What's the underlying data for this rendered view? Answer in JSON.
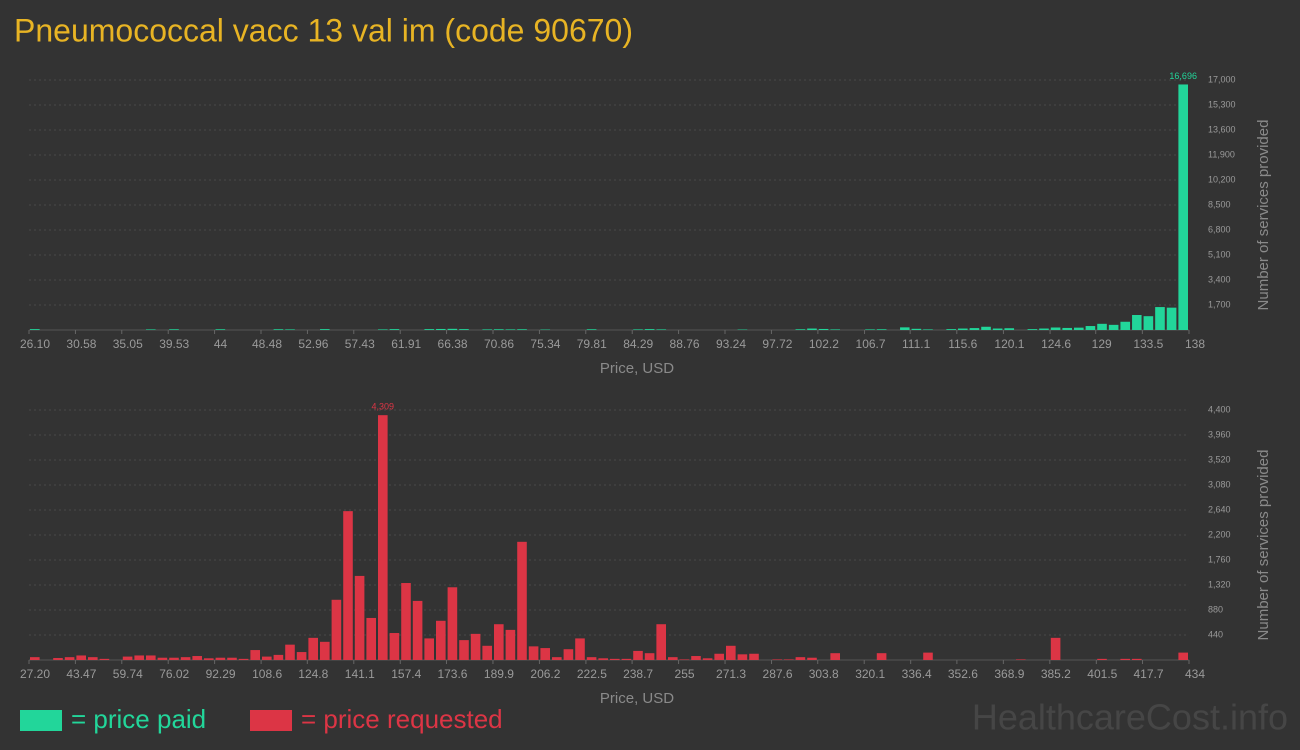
{
  "title": "Pneumococcal vacc 13 val im (code 90670)",
  "watermark": "HealthcareCost.info",
  "chart_data": [
    {
      "type": "histogram",
      "xlabel": "Price, USD",
      "ylabel": "Number of services provided",
      "grid": true,
      "xlim": [
        26.1,
        138
      ],
      "ylim": [
        0,
        17000
      ],
      "bins": [
        26.1,
        27.22,
        28.34,
        29.46,
        30.58,
        31.7,
        32.81,
        33.93,
        35.05,
        36.17,
        37.29,
        38.41,
        39.53,
        40.65,
        41.77,
        42.89,
        44.0,
        45.12,
        46.24,
        47.36,
        48.48,
        49.6,
        50.72,
        51.84,
        52.96,
        54.08,
        55.19,
        56.31,
        57.43,
        58.55,
        59.67,
        60.79,
        61.91,
        63.03,
        64.15,
        65.27,
        66.38,
        67.5,
        68.62,
        69.74,
        70.86,
        71.98,
        73.1,
        74.22,
        75.34,
        76.46,
        77.57,
        78.69,
        79.81,
        80.93,
        82.05,
        83.17,
        84.29,
        85.41,
        86.53,
        87.65,
        88.76,
        89.88,
        91.0,
        92.12,
        93.24,
        94.36,
        95.48,
        96.6,
        97.72,
        98.84,
        99.95,
        101.07,
        102.19,
        103.31,
        104.43,
        105.55,
        106.67,
        107.79,
        108.91,
        110.03,
        111.14,
        112.26,
        113.38,
        114.5,
        115.62,
        116.74,
        117.86,
        118.98,
        120.1,
        121.22,
        122.33,
        123.45,
        124.57,
        125.69,
        126.81,
        127.93,
        129.05,
        130.17,
        131.29,
        132.41,
        133.52,
        134.64,
        135.76,
        136.88,
        138.0
      ],
      "xticks": [
        {
          "value": 26.1,
          "label": "26.10"
        },
        30.58,
        35.05,
        39.53,
        44,
        48.48,
        52.96,
        57.43,
        61.91,
        66.38,
        70.86,
        75.34,
        79.81,
        84.29,
        88.76,
        93.24,
        97.72,
        102.2,
        106.7,
        111.1,
        115.6,
        120.1,
        124.6,
        129,
        133.5,
        138
      ],
      "yticks": [
        {
          "value": 1700,
          "label": "1,700"
        },
        {
          "value": 3400,
          "label": "3,400"
        },
        {
          "value": 5100,
          "label": "5,100"
        },
        {
          "value": 6800,
          "label": "6,800"
        },
        {
          "value": 8500,
          "label": "8,500"
        },
        {
          "value": 10200,
          "label": "10,200"
        },
        {
          "value": 11900,
          "label": "11,900"
        },
        {
          "value": 13600,
          "label": "13,600"
        },
        {
          "value": 15300,
          "label": "15,300"
        },
        {
          "value": 17000,
          "label": "17,000"
        }
      ],
      "series": [
        {
          "name": "= price paid",
          "color": "#22d69a",
          "values": [
            60,
            0,
            0,
            0,
            0,
            0,
            0,
            0,
            0,
            0,
            40,
            0,
            50,
            0,
            0,
            0,
            50,
            0,
            0,
            0,
            0,
            50,
            40,
            0,
            0,
            60,
            0,
            0,
            0,
            0,
            40,
            60,
            0,
            0,
            60,
            70,
            80,
            60,
            0,
            40,
            50,
            40,
            50,
            0,
            30,
            0,
            0,
            0,
            50,
            0,
            0,
            0,
            40,
            60,
            40,
            0,
            0,
            0,
            0,
            0,
            0,
            30,
            0,
            0,
            0,
            0,
            50,
            100,
            70,
            40,
            0,
            0,
            40,
            50,
            0,
            180,
            80,
            40,
            0,
            60,
            100,
            130,
            220,
            100,
            120,
            0,
            60,
            100,
            170,
            140,
            160,
            270,
            420,
            350,
            560,
            1020,
            940,
            1560,
            1520,
            16696
          ],
          "value_labels": [
            null,
            null,
            null,
            null,
            null,
            null,
            null,
            null,
            null,
            null,
            null,
            null,
            null,
            null,
            null,
            null,
            null,
            null,
            null,
            null,
            null,
            null,
            null,
            null,
            null,
            null,
            null,
            null,
            null,
            null,
            null,
            null,
            null,
            null,
            null,
            null,
            null,
            null,
            null,
            null,
            null,
            null,
            null,
            null,
            null,
            null,
            null,
            null,
            null,
            null,
            null,
            null,
            null,
            null,
            null,
            null,
            null,
            null,
            null,
            null,
            null,
            null,
            null,
            null,
            null,
            null,
            null,
            null,
            null,
            null,
            null,
            null,
            null,
            null,
            null,
            null,
            null,
            null,
            null,
            null,
            null,
            null,
            null,
            null,
            null,
            null,
            null,
            null,
            null,
            null,
            null,
            null,
            null,
            null,
            null,
            null,
            null,
            null,
            null,
            "16,696"
          ]
        }
      ]
    },
    {
      "type": "histogram",
      "xlabel": "Price, USD",
      "ylabel": "Number of services provided",
      "grid": true,
      "xlim": [
        27.2,
        434
      ],
      "ylim": [
        0,
        4400
      ],
      "bins": [
        27.2,
        31.27,
        35.34,
        39.4,
        43.47,
        47.54,
        51.61,
        55.68,
        59.74,
        63.81,
        67.88,
        71.95,
        76.02,
        80.08,
        84.15,
        88.22,
        92.29,
        96.36,
        100.42,
        104.49,
        108.56,
        112.63,
        116.7,
        120.76,
        124.83,
        128.9,
        132.97,
        137.04,
        141.1,
        145.17,
        149.24,
        153.31,
        157.38,
        161.44,
        165.51,
        169.58,
        173.65,
        177.72,
        181.78,
        185.85,
        189.92,
        193.99,
        198.06,
        202.12,
        206.19,
        210.26,
        214.33,
        218.4,
        222.46,
        226.53,
        230.6,
        234.67,
        238.74,
        242.8,
        246.87,
        250.94,
        255.01,
        259.08,
        263.14,
        267.21,
        271.28,
        275.35,
        279.42,
        283.48,
        287.55,
        291.62,
        295.69,
        299.76,
        303.82,
        307.89,
        311.96,
        316.03,
        320.1,
        324.16,
        328.23,
        332.3,
        336.37,
        340.44,
        344.5,
        348.57,
        352.64,
        356.71,
        360.78,
        364.84,
        368.91,
        372.98,
        377.05,
        381.12,
        385.18,
        389.25,
        393.32,
        397.39,
        401.46,
        405.52,
        409.59,
        413.66,
        417.73,
        421.8,
        425.86,
        429.93,
        434.0
      ],
      "xticks": [
        {
          "value": 27.2,
          "label": "27.20"
        },
        43.47,
        59.74,
        76.02,
        92.29,
        108.6,
        124.8,
        141.1,
        157.4,
        173.6,
        189.9,
        206.2,
        222.5,
        238.7,
        255,
        271.3,
        287.6,
        303.8,
        320.1,
        336.4,
        352.6,
        368.9,
        385.2,
        401.5,
        417.7,
        434
      ],
      "yticks": [
        440,
        880,
        {
          "value": 1320,
          "label": "1,320"
        },
        {
          "value": 1760,
          "label": "1,760"
        },
        {
          "value": 2200,
          "label": "2,200"
        },
        {
          "value": 2640,
          "label": "2,640"
        },
        {
          "value": 3080,
          "label": "3,080"
        },
        {
          "value": 3520,
          "label": "3,520"
        },
        {
          "value": 3960,
          "label": "3,960"
        },
        {
          "value": 4400,
          "label": "4,400"
        }
      ],
      "series": [
        {
          "name": "= price requested",
          "color": "#dc3545",
          "values": [
            50,
            0,
            35,
            50,
            80,
            50,
            20,
            0,
            60,
            80,
            80,
            40,
            40,
            50,
            70,
            30,
            40,
            40,
            20,
            175,
            60,
            90,
            270,
            140,
            390,
            320,
            1060,
            2620,
            1480,
            740,
            4309,
            475,
            1355,
            1040,
            380,
            690,
            1280,
            350,
            460,
            250,
            630,
            530,
            2080,
            240,
            210,
            50,
            190,
            380,
            50,
            30,
            20,
            20,
            160,
            120,
            630,
            50,
            10,
            70,
            30,
            110,
            250,
            100,
            110,
            0,
            10,
            10,
            50,
            40,
            0,
            120,
            0,
            0,
            0,
            120,
            0,
            0,
            0,
            130,
            0,
            0,
            0,
            0,
            0,
            0,
            0,
            10,
            0,
            0,
            390,
            0,
            0,
            0,
            20,
            0,
            20,
            20,
            0,
            0,
            0,
            130
          ],
          "value_labels": [
            null,
            null,
            null,
            null,
            null,
            null,
            null,
            null,
            null,
            null,
            null,
            null,
            null,
            null,
            null,
            null,
            null,
            null,
            null,
            null,
            null,
            null,
            null,
            null,
            null,
            null,
            null,
            null,
            null,
            null,
            "4,309",
            null,
            null,
            null,
            null,
            null,
            null,
            null,
            null,
            null,
            null,
            null,
            null,
            null,
            null,
            null,
            null,
            null,
            null,
            null,
            null,
            null,
            null,
            null,
            null,
            null,
            null,
            null,
            null,
            null,
            null,
            null,
            null,
            null,
            null,
            null,
            null,
            null,
            null,
            null,
            null,
            null,
            null,
            null,
            null,
            null,
            null,
            null,
            null,
            null,
            null,
            null,
            null,
            null,
            null,
            null,
            null,
            null,
            null,
            null,
            null,
            null,
            null,
            null,
            null,
            null,
            null,
            null,
            null,
            null
          ]
        }
      ]
    }
  ]
}
